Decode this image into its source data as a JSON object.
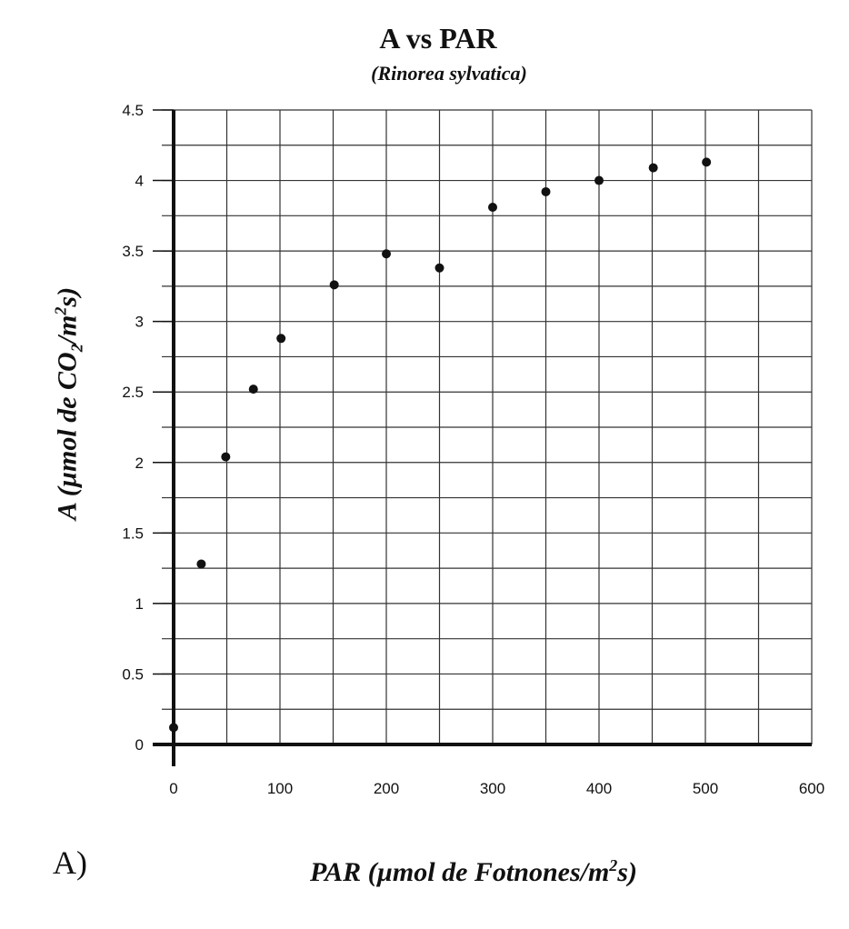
{
  "chart_data": {
    "type": "scatter",
    "title": "A vs PAR",
    "subtitle": "(Rinorea sylvatica)",
    "ylabel": {
      "pre": "A (µmol de CO",
      "sub": "2",
      "mid": "/m",
      "sup": "2",
      "post": "s)"
    },
    "xlabel": {
      "pre": "PAR (µmol de Fotnones/m",
      "sup": "2",
      "post": "s)"
    },
    "xlim": [
      0,
      600
    ],
    "ylim": [
      0,
      4.5
    ],
    "xticks": [
      0,
      100,
      200,
      300,
      400,
      500,
      600
    ],
    "yticks": [
      0,
      0.5,
      1,
      1.5,
      2,
      2.5,
      3,
      3.5,
      4,
      4.5
    ],
    "ytick_labels": [
      "0",
      "0.5",
      "1",
      "1.5",
      "2",
      "2.5",
      "3",
      "3.5",
      "4",
      "4.5"
    ],
    "grid": true,
    "marker_color": "#111111",
    "points": [
      {
        "x": 0,
        "y": 0.12
      },
      {
        "x": 26,
        "y": 1.28
      },
      {
        "x": 49,
        "y": 2.04
      },
      {
        "x": 75,
        "y": 2.52
      },
      {
        "x": 101,
        "y": 2.88
      },
      {
        "x": 151,
        "y": 3.26
      },
      {
        "x": 200,
        "y": 3.48
      },
      {
        "x": 250,
        "y": 3.38
      },
      {
        "x": 300,
        "y": 3.81
      },
      {
        "x": 350,
        "y": 3.92
      },
      {
        "x": 400,
        "y": 4.0
      },
      {
        "x": 451,
        "y": 4.09
      },
      {
        "x": 501,
        "y": 4.13
      }
    ]
  },
  "panel_label": "A)"
}
